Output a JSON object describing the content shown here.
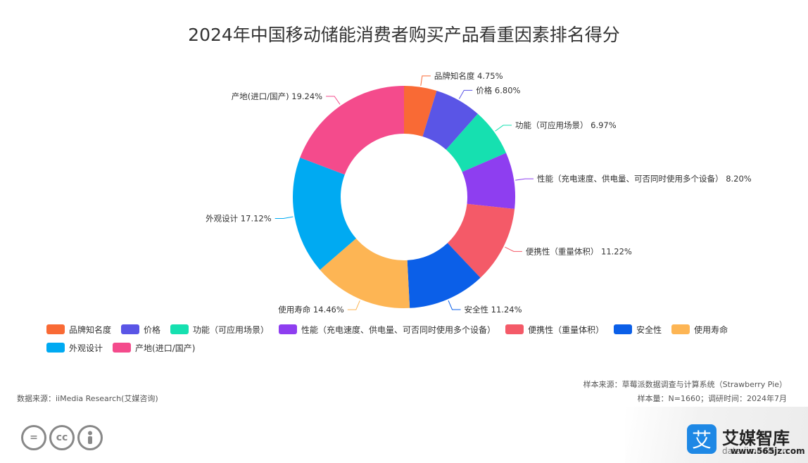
{
  "title": "2024年中国移动储能消费者购买产品看重因素排名得分",
  "chart_data": {
    "type": "pie",
    "title": "2024年中国移动储能消费者购买产品看重因素排名得分",
    "donut": true,
    "slices": [
      {
        "name": "品牌知名度",
        "label": "品牌知名度 4.75%",
        "value": 4.75,
        "color": "#f96a35"
      },
      {
        "name": "价格",
        "label": "价格 6.80%",
        "value": 6.8,
        "color": "#5a55e6"
      },
      {
        "name": "功能（可应用场景）",
        "label": "功能（可应用场景） 6.97%",
        "value": 6.97,
        "color": "#16e0b0"
      },
      {
        "name": "性能（充电速度、供电量、可否同时使用多个设备）",
        "label": "性能（充电速度、供电量、可否同时使用多个设备） 8.20%",
        "value": 8.2,
        "color": "#8e3ef0"
      },
      {
        "name": "便携性（重量体积）",
        "label": "便携性（重量体积） 11.22%",
        "value": 11.22,
        "color": "#f45a68"
      },
      {
        "name": "安全性",
        "label": "安全性 11.24%",
        "value": 11.24,
        "color": "#0b5fe8"
      },
      {
        "name": "使用寿命",
        "label": "使用寿命 14.46%",
        "value": 14.46,
        "color": "#fdb554"
      },
      {
        "name": "外观设计",
        "label": "外观设计 17.12%",
        "value": 17.12,
        "color": "#00aaf2"
      },
      {
        "name": "产地(进口/国产)",
        "label": "产地(进口/国产) 19.24%",
        "value": 19.24,
        "color": "#f44b8c"
      }
    ],
    "legend_position": "bottom"
  },
  "footer": {
    "source_left": "数据来源：iiMedia Research(艾媒咨询)",
    "source_right": "样本来源：草莓派数据调查与计算系统（Strawberry Pie）",
    "sample": "样本量：N=1660；调研时间：2024年7月"
  },
  "license_icons": [
    "equals-icon",
    "cc-icon",
    "person-icon"
  ],
  "brand": {
    "logo_char": "艾",
    "name": "艾媒智库",
    "site": "data.iimedia.cn",
    "watermark": "www.565jz.com"
  }
}
